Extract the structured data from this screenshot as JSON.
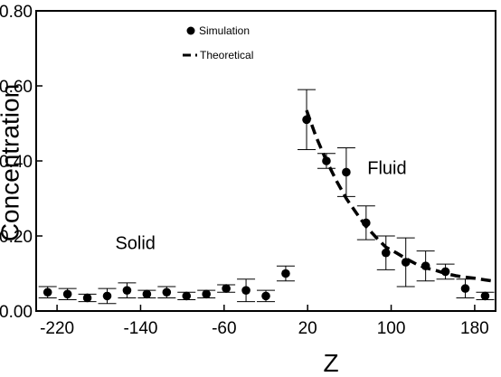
{
  "chart_data": {
    "type": "scatter",
    "xlabel": "Z",
    "ylabel": "Concentration",
    "xlim": [
      -240,
      200
    ],
    "ylim": [
      0,
      0.8
    ],
    "xticks": [
      -220,
      -140,
      -60,
      20,
      100,
      180
    ],
    "yticks": [
      0,
      0.2,
      0.4,
      0.6,
      0.8
    ],
    "xtick_labels": [
      "-220",
      "-140",
      "-60",
      "20",
      "100",
      "180"
    ],
    "ytick_labels": [
      "0.00",
      "0.20",
      "0.40",
      "0.60",
      "0.80"
    ],
    "legend": {
      "placement": "top-left",
      "entries": [
        {
          "label": "Simulation",
          "marker": "circle"
        },
        {
          "label": "Theoretical",
          "marker": "dashed-line"
        }
      ]
    },
    "annotations": [
      {
        "text": "Solid",
        "x": -145,
        "y": 0.165
      },
      {
        "text": "Fluid",
        "x": 96,
        "y": 0.365
      }
    ],
    "series": [
      {
        "name": "Simulation",
        "style": "points-with-errorbars",
        "x": [
          -229,
          -210,
          -191,
          -172,
          -153,
          -134,
          -115,
          -96,
          -77,
          -58,
          -39,
          -20,
          -1,
          19,
          38,
          57,
          76,
          95,
          114,
          133,
          152,
          171,
          190
        ],
        "y": [
          0.05,
          0.045,
          0.035,
          0.04,
          0.055,
          0.045,
          0.05,
          0.04,
          0.045,
          0.06,
          0.055,
          0.04,
          0.1,
          0.51,
          0.4,
          0.37,
          0.235,
          0.155,
          0.13,
          0.12,
          0.105,
          0.06,
          0.04
        ],
        "err": [
          0.015,
          0.015,
          0.01,
          0.02,
          0.02,
          0.01,
          0.015,
          0.01,
          0.01,
          0.01,
          0.03,
          0.015,
          0.02,
          0.08,
          0.02,
          0.065,
          0.045,
          0.045,
          0.065,
          0.04,
          0.02,
          0.025,
          0.01
        ]
      },
      {
        "name": "Theoretical",
        "style": "dashed-line",
        "x": [
          19,
          28,
          38,
          48,
          57,
          67,
          76,
          86,
          95,
          105,
          114,
          124,
          133,
          143,
          152,
          162,
          171,
          181,
          190,
          197
        ],
        "y": [
          0.535,
          0.465,
          0.4,
          0.345,
          0.3,
          0.26,
          0.225,
          0.195,
          0.17,
          0.155,
          0.14,
          0.125,
          0.115,
          0.108,
          0.1,
          0.094,
          0.09,
          0.087,
          0.083,
          0.08
        ]
      }
    ]
  }
}
